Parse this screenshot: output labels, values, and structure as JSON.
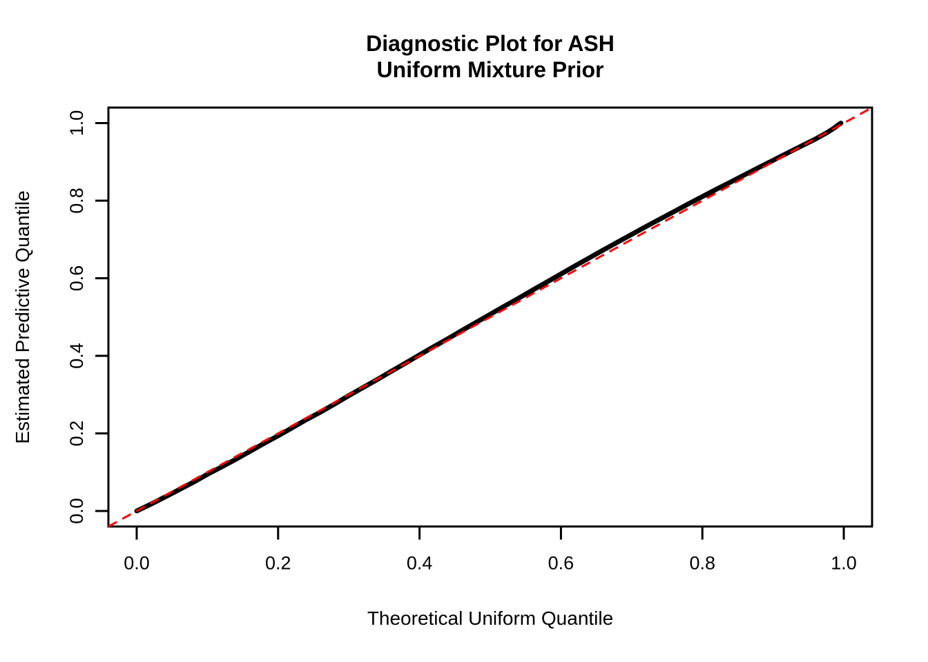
{
  "chart_data": {
    "type": "line",
    "subtype": "qq-diagnostic-plot",
    "title_line1": "Diagnostic Plot for ASH",
    "title_line2": "Uniform Mixture Prior",
    "xlabel": "Theoretical Uniform Quantile",
    "ylabel": "Estimated Predictive Quantile",
    "xlim": [
      -0.04,
      1.04
    ],
    "ylim": [
      -0.04,
      1.04
    ],
    "grid": "off",
    "legend": "none",
    "background_color": "#FFFFFF",
    "axis_color": "#000000",
    "xticks": [
      {
        "v": 0.0,
        "label": "0.0"
      },
      {
        "v": 0.2,
        "label": "0.2"
      },
      {
        "v": 0.4,
        "label": "0.4"
      },
      {
        "v": 0.6,
        "label": "0.6"
      },
      {
        "v": 0.8,
        "label": "0.8"
      },
      {
        "v": 1.0,
        "label": "1.0"
      }
    ],
    "yticks": [
      {
        "v": 0.0,
        "label": "0.0"
      },
      {
        "v": 0.2,
        "label": "0.2"
      },
      {
        "v": 0.4,
        "label": "0.4"
      },
      {
        "v": 0.6,
        "label": "0.6"
      },
      {
        "v": 0.8,
        "label": "0.8"
      },
      {
        "v": 1.0,
        "label": "1.0"
      }
    ],
    "series": [
      {
        "name": "estimated-quantile-curve",
        "color": "#000000",
        "width": 7,
        "dash": null,
        "points": [
          [
            0.0,
            0.0
          ],
          [
            0.02,
            0.0175
          ],
          [
            0.04,
            0.036
          ],
          [
            0.06,
            0.055
          ],
          [
            0.08,
            0.074
          ],
          [
            0.1,
            0.0945
          ],
          [
            0.12,
            0.1135
          ],
          [
            0.14,
            0.133
          ],
          [
            0.16,
            0.1535
          ],
          [
            0.18,
            0.174
          ],
          [
            0.2,
            0.194
          ],
          [
            0.22,
            0.2145
          ],
          [
            0.24,
            0.2355
          ],
          [
            0.26,
            0.255
          ],
          [
            0.28,
            0.276
          ],
          [
            0.3,
            0.2975
          ],
          [
            0.32,
            0.318
          ],
          [
            0.34,
            0.3385
          ],
          [
            0.36,
            0.36
          ],
          [
            0.38,
            0.381
          ],
          [
            0.4,
            0.4025
          ],
          [
            0.42,
            0.4235
          ],
          [
            0.44,
            0.444
          ],
          [
            0.46,
            0.4655
          ],
          [
            0.48,
            0.486
          ],
          [
            0.5,
            0.507
          ],
          [
            0.52,
            0.528
          ],
          [
            0.54,
            0.5485
          ],
          [
            0.56,
            0.5695
          ],
          [
            0.58,
            0.59
          ],
          [
            0.6,
            0.611
          ],
          [
            0.62,
            0.632
          ],
          [
            0.64,
            0.6525
          ],
          [
            0.66,
            0.673
          ],
          [
            0.68,
            0.693
          ],
          [
            0.7,
            0.713
          ],
          [
            0.72,
            0.733
          ],
          [
            0.74,
            0.7525
          ],
          [
            0.76,
            0.772
          ],
          [
            0.78,
            0.7915
          ],
          [
            0.8,
            0.8105
          ],
          [
            0.82,
            0.8295
          ],
          [
            0.84,
            0.848
          ],
          [
            0.86,
            0.867
          ],
          [
            0.88,
            0.8855
          ],
          [
            0.9,
            0.904
          ],
          [
            0.92,
            0.9225
          ],
          [
            0.94,
            0.941
          ],
          [
            0.96,
            0.959
          ],
          [
            0.975,
            0.974
          ],
          [
            0.985,
            0.9855
          ],
          [
            0.992,
            0.995
          ],
          [
            0.996,
            1.0
          ]
        ]
      },
      {
        "name": "reference-diagonal-line",
        "color": "#FF0000",
        "width": 3,
        "dash": "14 9",
        "points": [
          [
            -0.04,
            -0.04
          ],
          [
            1.04,
            1.04
          ]
        ]
      }
    ]
  }
}
